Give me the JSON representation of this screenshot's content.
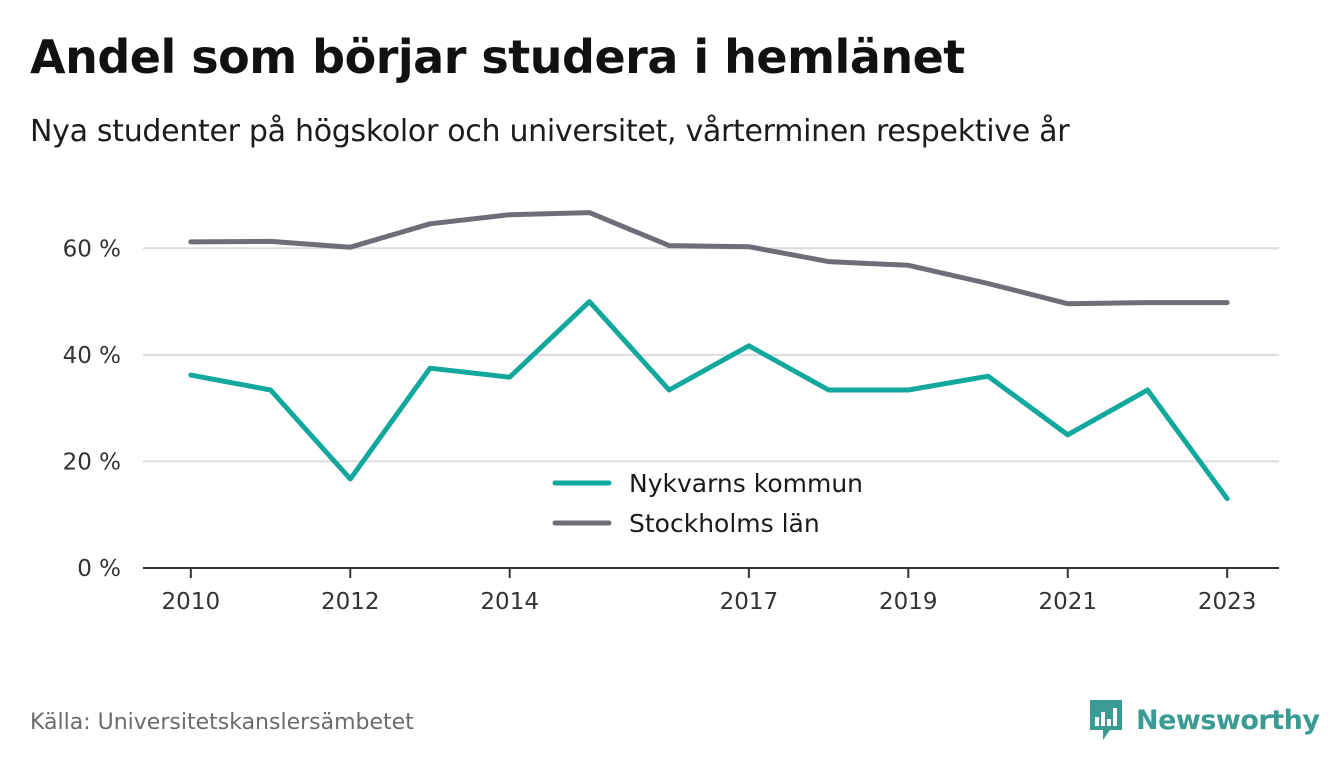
{
  "title": "Andel som börjar studera i hemlänet",
  "subtitle": "Nya studenter på högskolor och universitet, vårterminen respektive år",
  "source": "Källa: Universitetskanslersämbetet",
  "brand": {
    "name": "Newsworthy",
    "icon": "newsworthy-chart-icon",
    "color": "#3a9a94"
  },
  "chart_data": {
    "type": "line",
    "x": [
      2010,
      2011,
      2012,
      2013,
      2014,
      2015,
      2016,
      2017,
      2018,
      2019,
      2020,
      2021,
      2022,
      2023
    ],
    "x_tick_labels": [
      "2010",
      "2012",
      "2014",
      "2017",
      "2019",
      "2021",
      "2023"
    ],
    "y_tick_labels": [
      "0 %",
      "20 %",
      "40 %",
      "60 %"
    ],
    "y_ticks": [
      0,
      20,
      40,
      60
    ],
    "ylim": [
      0,
      70
    ],
    "xlim": [
      2009.4,
      2023.65
    ],
    "grid": "horizontal",
    "legend_position": "center-bottom",
    "series": [
      {
        "name": "Nykvarns kommun",
        "color": "#13a89e",
        "values": [
          36.2,
          33.4,
          16.7,
          37.5,
          35.8,
          50.0,
          33.4,
          41.7,
          33.4,
          33.4,
          36.0,
          25.0,
          33.4,
          13.0
        ]
      },
      {
        "name": "Stockholms län",
        "color": "#6f6e77",
        "values": [
          61.2,
          61.3,
          60.2,
          64.6,
          66.3,
          66.7,
          60.5,
          60.3,
          57.5,
          56.8,
          53.4,
          49.6,
          49.8,
          49.8
        ]
      }
    ]
  }
}
